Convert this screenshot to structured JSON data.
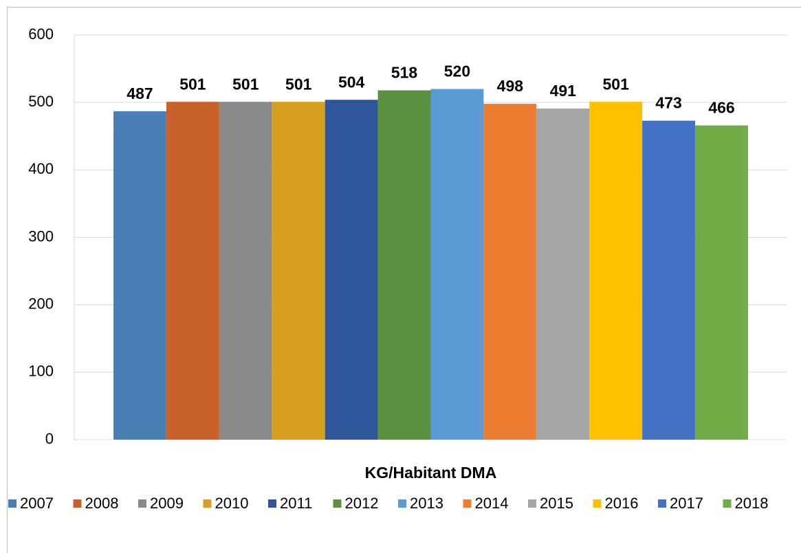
{
  "chart_data": {
    "type": "bar",
    "categories": [
      "KG/Habitant DMA"
    ],
    "series": [
      {
        "name": "2007",
        "color": "#4a7fb5",
        "values": [
          487
        ]
      },
      {
        "name": "2008",
        "color": "#c9622a",
        "values": [
          501
        ]
      },
      {
        "name": "2009",
        "color": "#8a8a8a",
        "values": [
          501
        ]
      },
      {
        "name": "2010",
        "color": "#d9a020",
        "values": [
          501
        ]
      },
      {
        "name": "2011",
        "color": "#2f559a",
        "values": [
          504
        ]
      },
      {
        "name": "2012",
        "color": "#5a9040",
        "values": [
          518
        ]
      },
      {
        "name": "2013",
        "color": "#5b9bd5",
        "values": [
          520
        ]
      },
      {
        "name": "2014",
        "color": "#ed7d31",
        "values": [
          498
        ]
      },
      {
        "name": "2015",
        "color": "#a5a5a5",
        "values": [
          491
        ]
      },
      {
        "name": "2016",
        "color": "#ffc000",
        "values": [
          501
        ]
      },
      {
        "name": "2017",
        "color": "#4472c4",
        "values": [
          473
        ]
      },
      {
        "name": "2018",
        "color": "#70ad47",
        "values": [
          466
        ]
      }
    ],
    "ylim": [
      0,
      600
    ],
    "yticks": [
      0,
      100,
      200,
      300,
      400,
      500,
      600
    ],
    "grid": true,
    "legend": "bottom"
  }
}
